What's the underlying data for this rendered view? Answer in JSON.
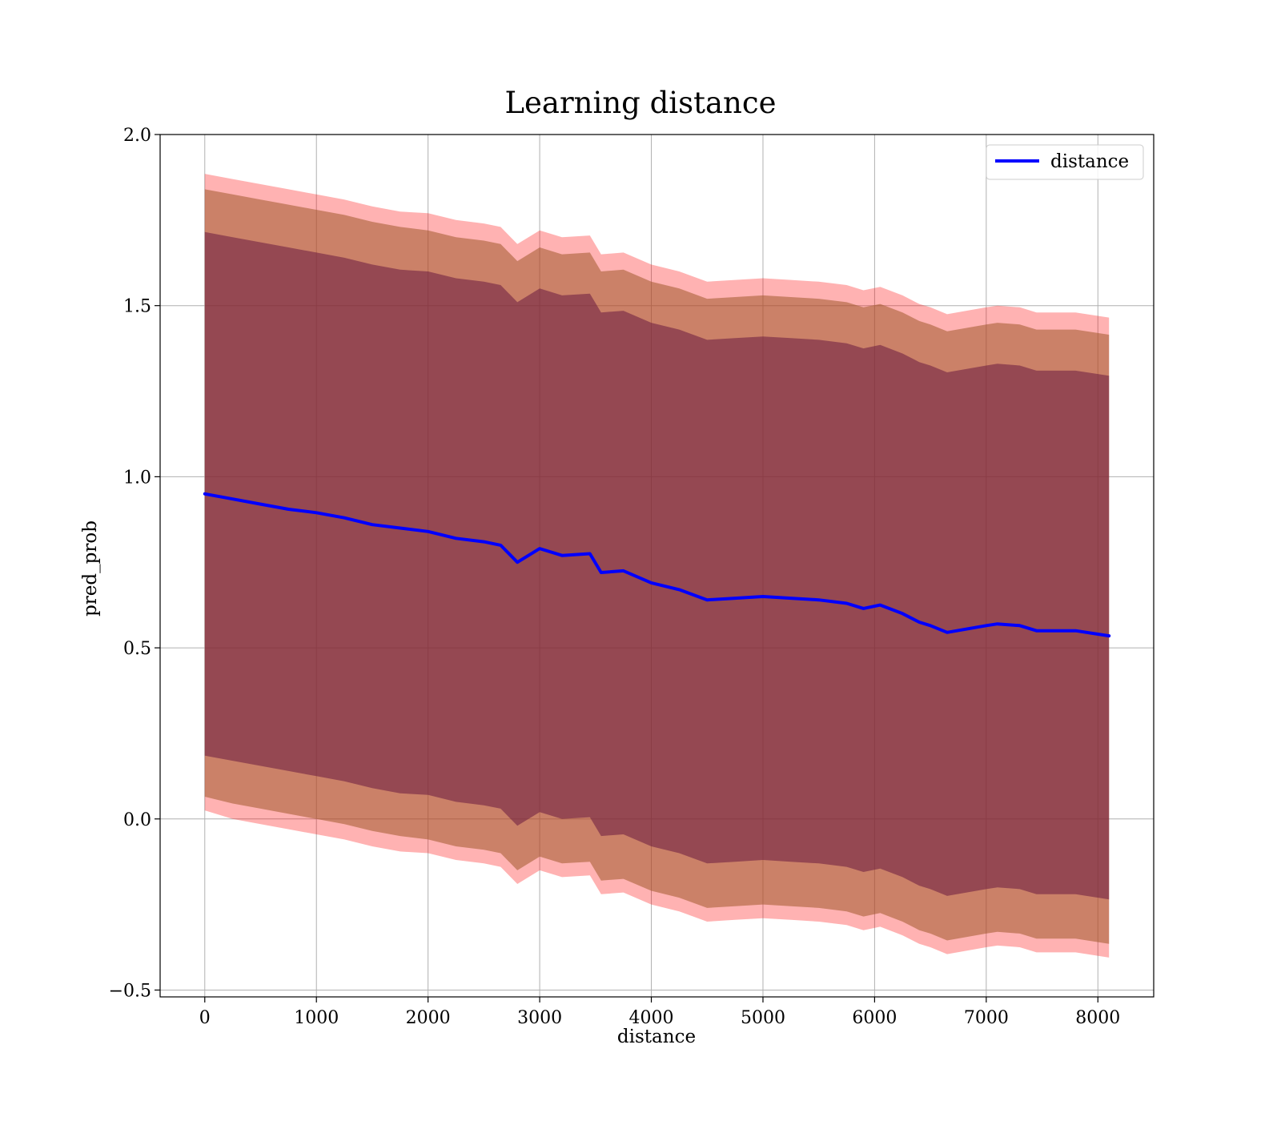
{
  "chart_data": {
    "type": "line",
    "title": "Learning distance",
    "xlabel": "distance",
    "ylabel": "pred_prob",
    "xlim": [
      -400,
      8500
    ],
    "ylim": [
      -0.52,
      2.0
    ],
    "xticks": [
      0,
      1000,
      2000,
      3000,
      4000,
      5000,
      6000,
      7000,
      8000
    ],
    "xtick_labels": [
      "0",
      "1000",
      "2000",
      "3000",
      "4000",
      "5000",
      "6000",
      "7000",
      "8000"
    ],
    "yticks": [
      -0.5,
      0.0,
      0.5,
      1.0,
      1.5,
      2.0
    ],
    "ytick_labels": [
      "−0.5",
      "0.0",
      "0.5",
      "1.0",
      "1.5",
      "2.0"
    ],
    "grid": true,
    "legend": {
      "placement": "top-right",
      "entries": [
        "distance"
      ]
    },
    "colors": {
      "line": "#0000ff",
      "band_outer": "#ff0000",
      "band_middle": "#a05a2c",
      "band_inner": "#6a1a3f"
    },
    "x": [
      0,
      250,
      500,
      750,
      1000,
      1250,
      1500,
      1750,
      2000,
      2250,
      2500,
      2650,
      2800,
      3000,
      3200,
      3450,
      3550,
      3750,
      4000,
      4250,
      4500,
      4750,
      5000,
      5250,
      5500,
      5750,
      5900,
      6050,
      6250,
      6400,
      6500,
      6650,
      7000,
      7100,
      7300,
      7450,
      7800,
      8100
    ],
    "series": [
      {
        "name": "distance",
        "values": [
          0.95,
          0.935,
          0.92,
          0.905,
          0.895,
          0.88,
          0.86,
          0.85,
          0.84,
          0.82,
          0.81,
          0.8,
          0.75,
          0.79,
          0.77,
          0.775,
          0.72,
          0.725,
          0.69,
          0.67,
          0.64,
          0.645,
          0.65,
          0.645,
          0.64,
          0.63,
          0.615,
          0.625,
          0.6,
          0.575,
          0.565,
          0.545,
          0.565,
          0.57,
          0.565,
          0.55,
          0.55,
          0.535
        ]
      }
    ],
    "bands": [
      {
        "upper": [
          1.885,
          1.87,
          1.855,
          1.84,
          1.825,
          1.81,
          1.79,
          1.775,
          1.77,
          1.75,
          1.74,
          1.73,
          1.68,
          1.72,
          1.7,
          1.705,
          1.65,
          1.655,
          1.62,
          1.6,
          1.57,
          1.575,
          1.58,
          1.575,
          1.57,
          1.56,
          1.545,
          1.555,
          1.53,
          1.505,
          1.495,
          1.475,
          1.495,
          1.5,
          1.495,
          1.48,
          1.48,
          1.465
        ],
        "lower": [
          0.025,
          0.0,
          -0.015,
          -0.03,
          -0.045,
          -0.06,
          -0.08,
          -0.095,
          -0.1,
          -0.12,
          -0.13,
          -0.14,
          -0.19,
          -0.15,
          -0.17,
          -0.165,
          -0.22,
          -0.215,
          -0.25,
          -0.27,
          -0.3,
          -0.295,
          -0.29,
          -0.295,
          -0.3,
          -0.31,
          -0.325,
          -0.315,
          -0.34,
          -0.365,
          -0.375,
          -0.395,
          -0.375,
          -0.37,
          -0.375,
          -0.39,
          -0.39,
          -0.405
        ]
      },
      {
        "upper": [
          1.84,
          1.825,
          1.81,
          1.795,
          1.78,
          1.765,
          1.745,
          1.73,
          1.72,
          1.7,
          1.69,
          1.68,
          1.63,
          1.67,
          1.65,
          1.655,
          1.6,
          1.605,
          1.57,
          1.55,
          1.52,
          1.525,
          1.53,
          1.525,
          1.52,
          1.51,
          1.495,
          1.505,
          1.48,
          1.455,
          1.445,
          1.425,
          1.445,
          1.45,
          1.445,
          1.43,
          1.43,
          1.415
        ],
        "lower": [
          0.065,
          0.045,
          0.03,
          0.015,
          0.0,
          -0.015,
          -0.035,
          -0.05,
          -0.06,
          -0.08,
          -0.09,
          -0.1,
          -0.15,
          -0.11,
          -0.13,
          -0.125,
          -0.18,
          -0.175,
          -0.21,
          -0.23,
          -0.26,
          -0.255,
          -0.25,
          -0.255,
          -0.26,
          -0.27,
          -0.285,
          -0.275,
          -0.3,
          -0.325,
          -0.335,
          -0.355,
          -0.335,
          -0.33,
          -0.335,
          -0.35,
          -0.35,
          -0.365
        ]
      },
      {
        "upper": [
          1.715,
          1.7,
          1.685,
          1.67,
          1.655,
          1.64,
          1.62,
          1.605,
          1.6,
          1.58,
          1.57,
          1.56,
          1.51,
          1.55,
          1.53,
          1.535,
          1.48,
          1.485,
          1.45,
          1.43,
          1.4,
          1.405,
          1.41,
          1.405,
          1.4,
          1.39,
          1.375,
          1.385,
          1.36,
          1.335,
          1.325,
          1.305,
          1.325,
          1.33,
          1.325,
          1.31,
          1.31,
          1.295
        ],
        "lower": [
          0.185,
          0.17,
          0.155,
          0.14,
          0.125,
          0.11,
          0.09,
          0.075,
          0.07,
          0.05,
          0.04,
          0.03,
          -0.02,
          0.02,
          0.0,
          0.005,
          -0.05,
          -0.045,
          -0.08,
          -0.1,
          -0.13,
          -0.125,
          -0.12,
          -0.125,
          -0.13,
          -0.14,
          -0.155,
          -0.145,
          -0.17,
          -0.195,
          -0.205,
          -0.225,
          -0.205,
          -0.2,
          -0.205,
          -0.22,
          -0.22,
          -0.235
        ]
      }
    ]
  }
}
